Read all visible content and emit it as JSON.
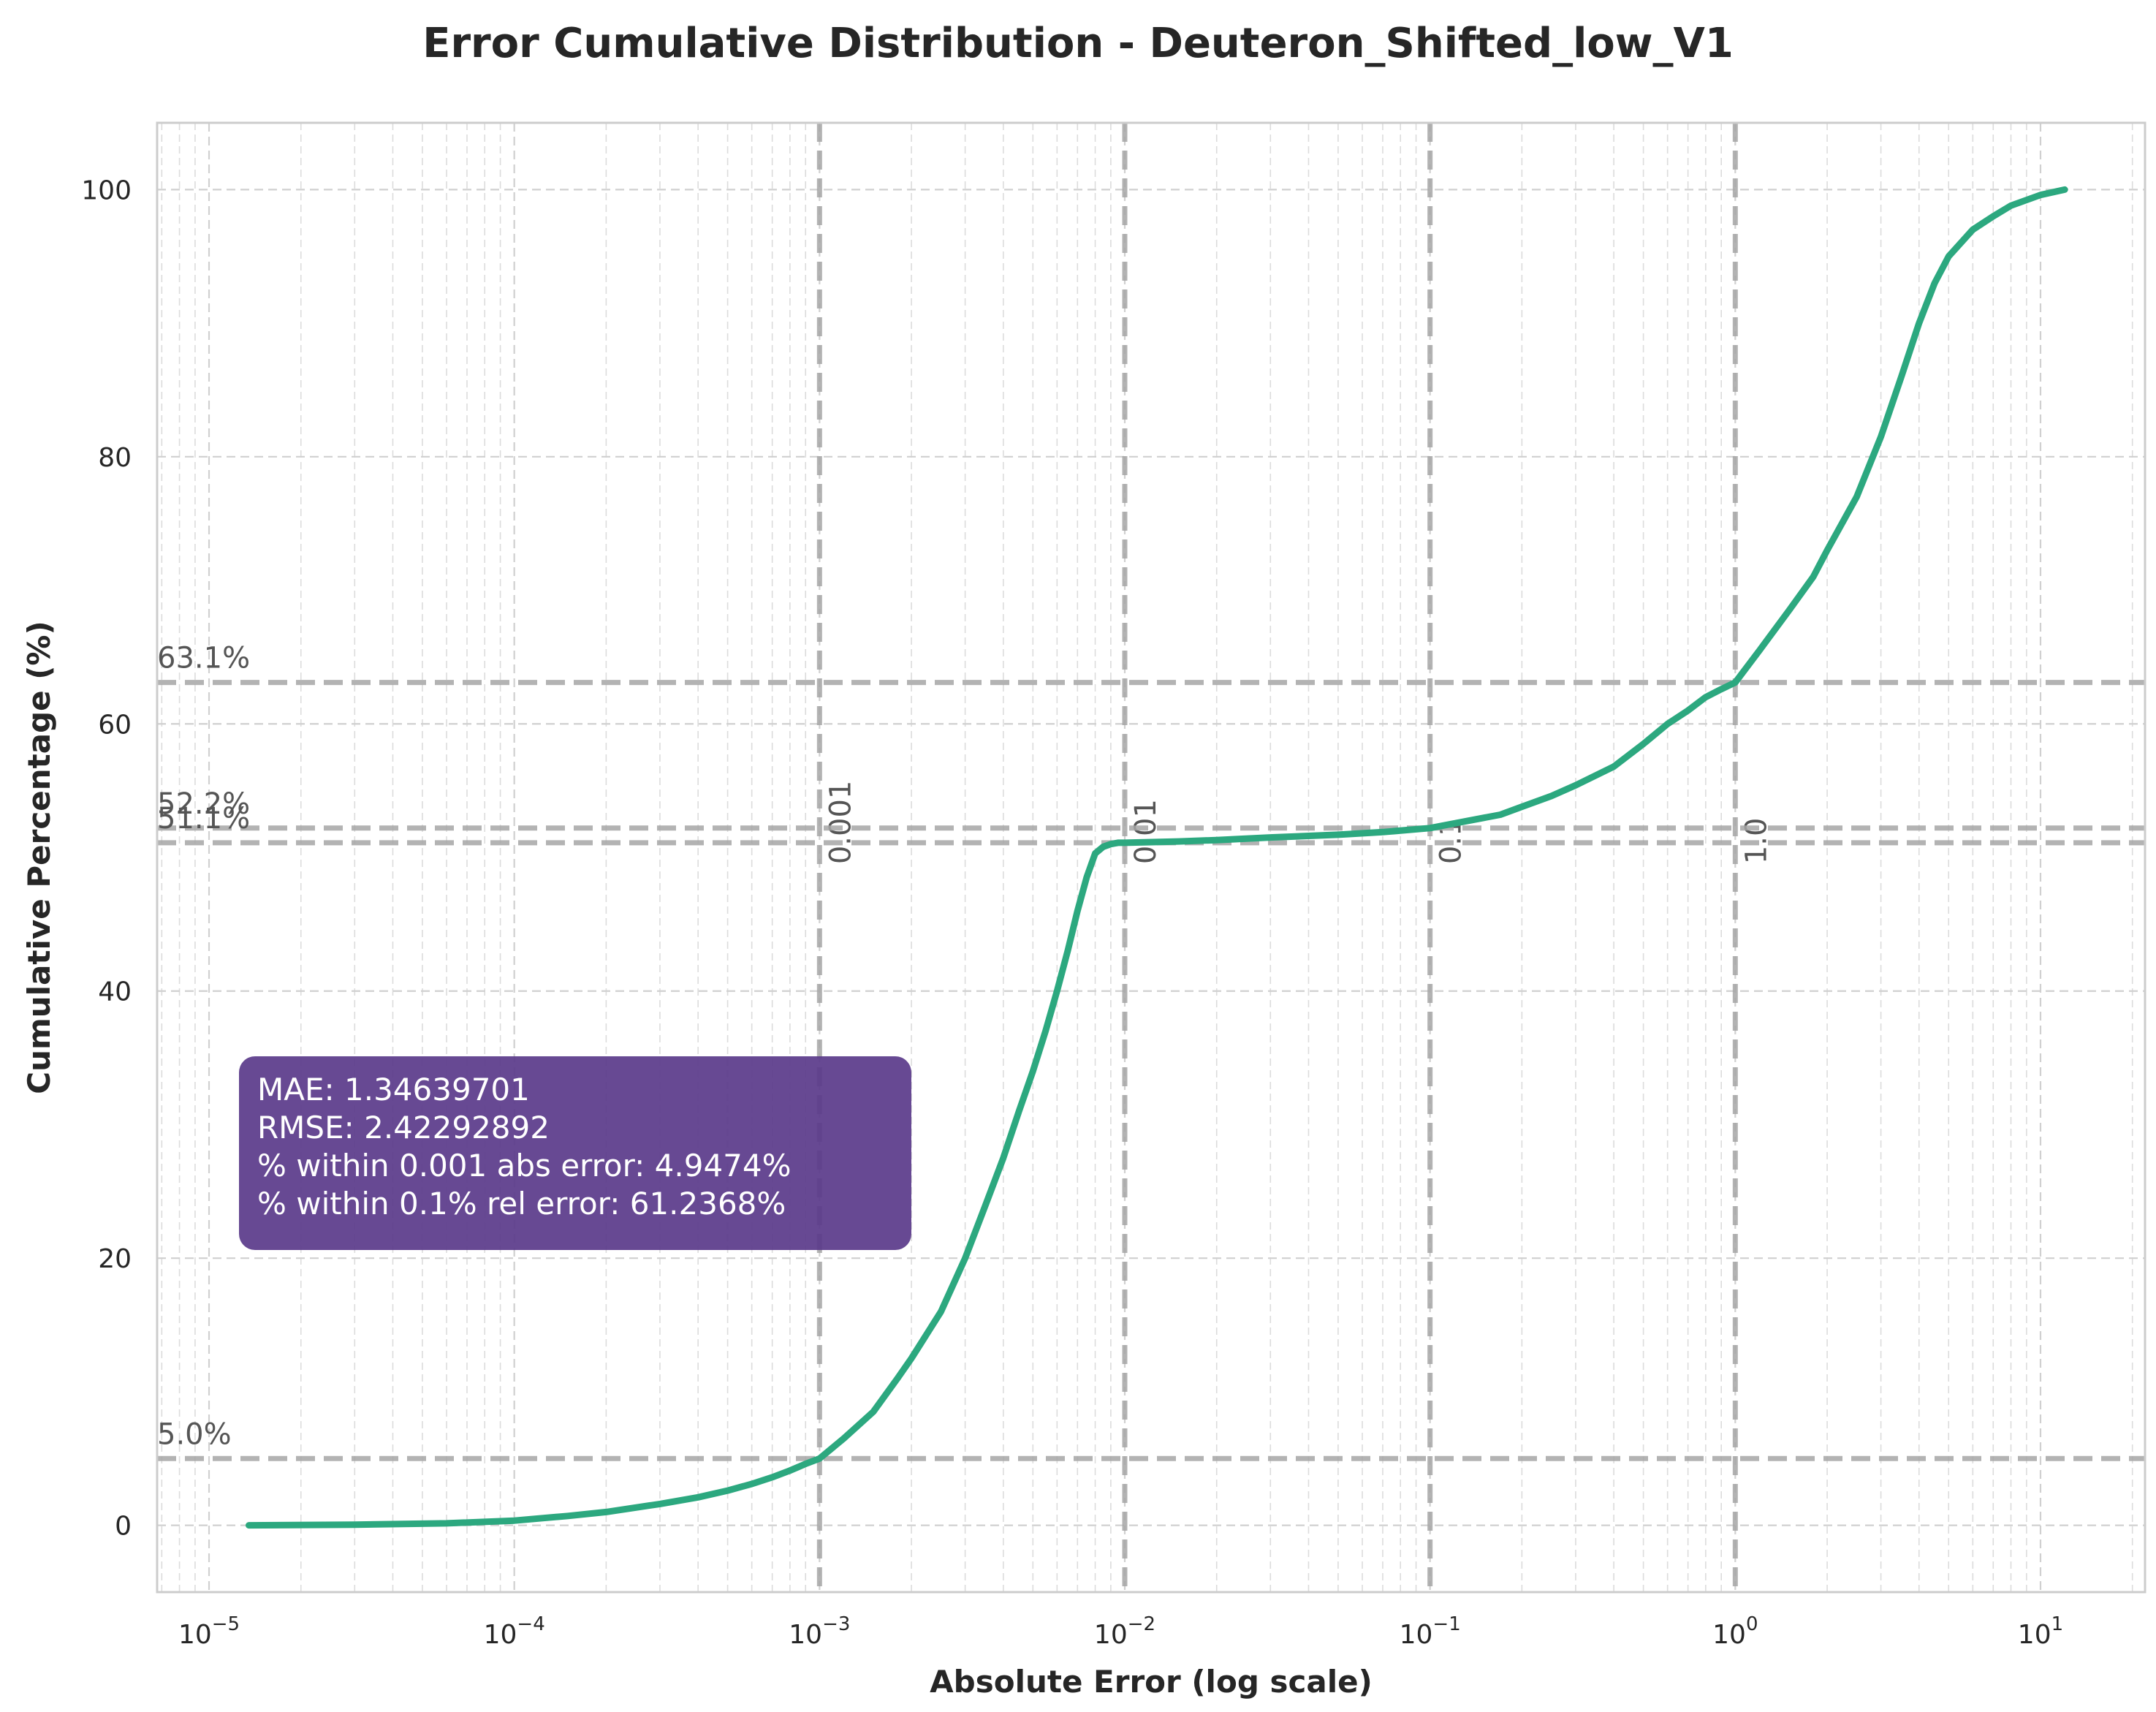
{
  "chart_data": {
    "type": "line",
    "title": "Error Cumulative Distribution - Deuteron_Shifted_low_V1",
    "xlabel": "Absolute Error (log scale)",
    "ylabel": "Cumulative Percentage (%)",
    "xscale": "log",
    "xlim": [
      6.76e-06,
      22
    ],
    "ylim": [
      -5,
      105
    ],
    "grid": true,
    "line_color": "#2ca87f",
    "x_ticks": [
      {
        "value": 1e-05,
        "base": "10",
        "exp": "−5"
      },
      {
        "value": 0.0001,
        "base": "10",
        "exp": "−4"
      },
      {
        "value": 0.001,
        "base": "10",
        "exp": "−3"
      },
      {
        "value": 0.01,
        "base": "10",
        "exp": "−2"
      },
      {
        "value": 0.1,
        "base": "10",
        "exp": "−1"
      },
      {
        "value": 1,
        "base": "10",
        "exp": "0"
      },
      {
        "value": 10,
        "base": "10",
        "exp": "1"
      }
    ],
    "y_ticks": [
      {
        "value": 0,
        "label": "0"
      },
      {
        "value": 20,
        "label": "20"
      },
      {
        "value": 40,
        "label": "40"
      },
      {
        "value": 60,
        "label": "60"
      },
      {
        "value": 80,
        "label": "80"
      },
      {
        "value": 100,
        "label": "100"
      }
    ],
    "vlines": [
      {
        "x": 0.001,
        "label": "0.001"
      },
      {
        "x": 0.01,
        "label": "0.01"
      },
      {
        "x": 0.1,
        "label": "0.1"
      },
      {
        "x": 1,
        "label": "1.0"
      }
    ],
    "hlines": [
      {
        "y": 63.1,
        "label": "63.1%"
      },
      {
        "y": 52.2,
        "label": "52.2%"
      },
      {
        "y": 51.1,
        "label": "51.1%"
      },
      {
        "y": 5.0,
        "label": "5.0%"
      }
    ],
    "series": [
      {
        "x": [
          1.35e-05,
          3e-05,
          6e-05,
          0.0001,
          0.00015,
          0.0002,
          0.0003,
          0.0004,
          0.0005,
          0.0006,
          0.0007,
          0.0008,
          0.0009,
          0.001,
          0.0012,
          0.0015,
          0.0018,
          0.002,
          0.0025,
          0.003,
          0.0035,
          0.004,
          0.0045,
          0.005,
          0.0055,
          0.006,
          0.0065,
          0.007,
          0.0075,
          0.008,
          0.0085,
          0.009,
          0.0095,
          0.01,
          0.015,
          0.02,
          0.03,
          0.05,
          0.07,
          0.1,
          0.13,
          0.17,
          0.2,
          0.25,
          0.3,
          0.4,
          0.5,
          0.6,
          0.7,
          0.8,
          0.9,
          1.0,
          1.2,
          1.5,
          1.8,
          2.0,
          2.5,
          3.0,
          3.5,
          4.0,
          4.5,
          5.0,
          6.0,
          7.0,
          8.0,
          10.0,
          12.0
        ],
        "y": [
          0,
          0.05,
          0.15,
          0.35,
          0.7,
          1.0,
          1.6,
          2.1,
          2.6,
          3.1,
          3.6,
          4.1,
          4.6,
          5.0,
          6.5,
          8.5,
          11.0,
          12.5,
          16.0,
          20.0,
          24.0,
          27.5,
          31.0,
          34.0,
          37.0,
          40.0,
          43.0,
          46.0,
          48.5,
          50.3,
          50.8,
          51.0,
          51.1,
          51.1,
          51.2,
          51.3,
          51.5,
          51.7,
          51.9,
          52.2,
          52.7,
          53.2,
          53.8,
          54.6,
          55.4,
          56.8,
          58.5,
          60.0,
          61.0,
          62.0,
          62.6,
          63.1,
          65.5,
          68.5,
          71.0,
          73.0,
          77.0,
          81.5,
          86.0,
          90.0,
          93.0,
          95.0,
          97.0,
          98.0,
          98.8,
          99.6,
          100.0
        ]
      }
    ]
  },
  "stats_box": {
    "lines": [
      "MAE: 1.34639701",
      "RMSE: 2.42292892",
      "% within 0.001 abs error: 4.9474%",
      "% within 0.1% rel error: 61.2368%"
    ],
    "background": "#5a3a8a"
  }
}
